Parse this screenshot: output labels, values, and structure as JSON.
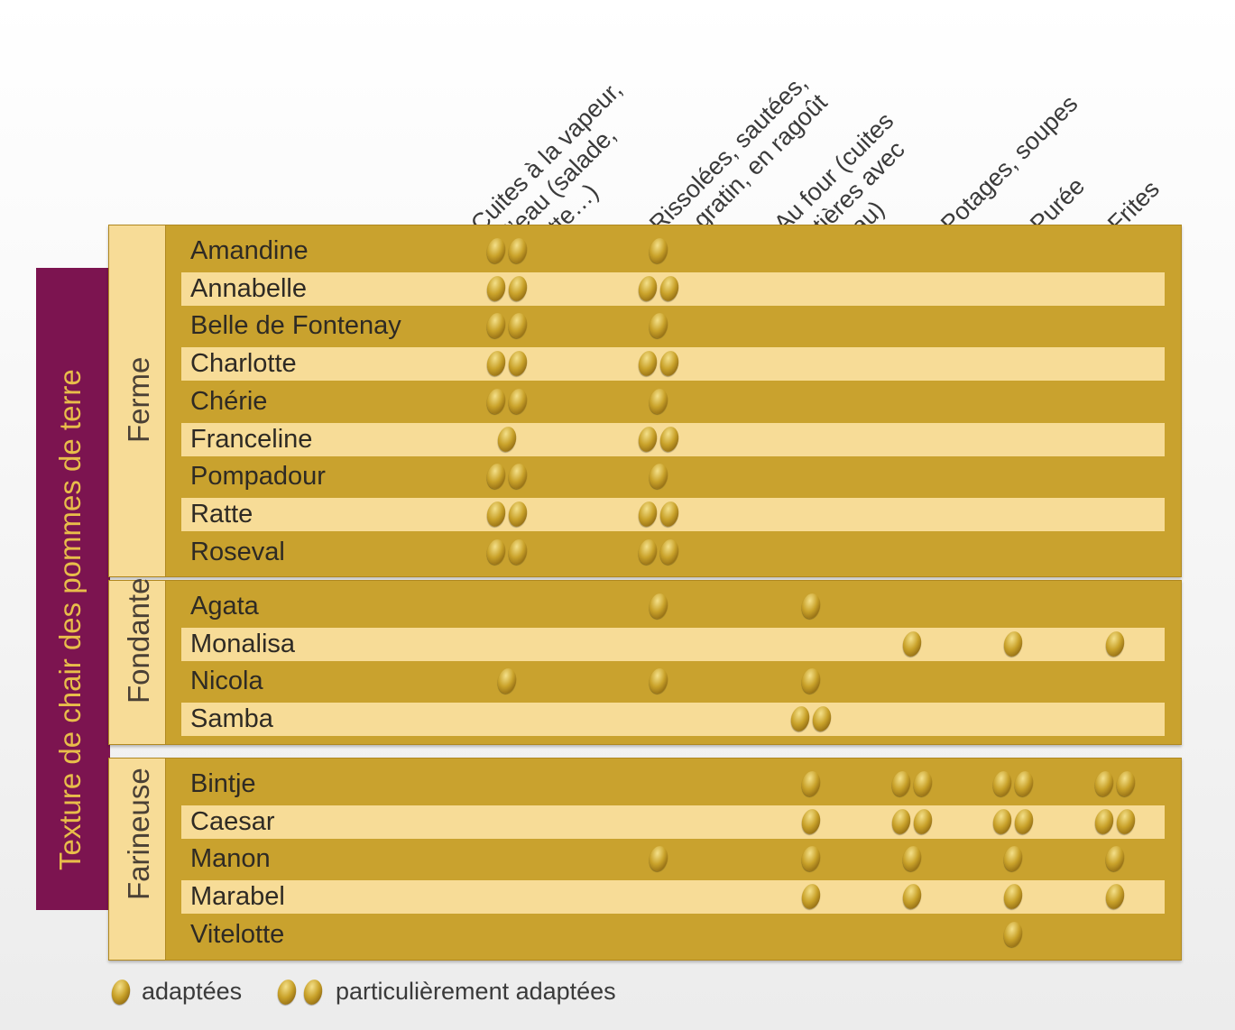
{
  "columns": [
    {
      "lines": [
        "Cuites à la vapeur,",
        "à l’eau (salade,",
        "raclette…)"
      ]
    },
    {
      "lines": [
        "Rissolées, sautées,",
        "en gratin, en ragoût"
      ]
    },
    {
      "lines": [
        "Au four (cuites",
        "entières avec",
        "la peau)"
      ]
    },
    {
      "lines": [
        "Potages, soupes"
      ]
    },
    {
      "lines": [
        "Purée"
      ]
    },
    {
      "lines": [
        "Frites"
      ]
    }
  ],
  "side_label": "Texture de chair des pommes de terre",
  "groups": [
    {
      "label": "Ferme",
      "rows": [
        {
          "name": "Amandine",
          "ratings": [
            2,
            1,
            0,
            0,
            0,
            0
          ]
        },
        {
          "name": "Annabelle",
          "ratings": [
            2,
            2,
            0,
            0,
            0,
            0
          ]
        },
        {
          "name": "Belle de Fontenay",
          "ratings": [
            2,
            1,
            0,
            0,
            0,
            0
          ]
        },
        {
          "name": "Charlotte",
          "ratings": [
            2,
            2,
            0,
            0,
            0,
            0
          ]
        },
        {
          "name": "Chérie",
          "ratings": [
            2,
            1,
            0,
            0,
            0,
            0
          ]
        },
        {
          "name": "Franceline",
          "ratings": [
            1,
            2,
            0,
            0,
            0,
            0
          ]
        },
        {
          "name": "Pompadour",
          "ratings": [
            2,
            1,
            0,
            0,
            0,
            0
          ]
        },
        {
          "name": "Ratte",
          "ratings": [
            2,
            2,
            0,
            0,
            0,
            0
          ]
        },
        {
          "name": "Roseval",
          "ratings": [
            2,
            2,
            0,
            0,
            0,
            0
          ]
        }
      ]
    },
    {
      "label": "Fondante",
      "rows": [
        {
          "name": "Agata",
          "ratings": [
            0,
            1,
            1,
            0,
            0,
            0
          ]
        },
        {
          "name": "Monalisa",
          "ratings": [
            0,
            0,
            0,
            1,
            1,
            1
          ]
        },
        {
          "name": "Nicola",
          "ratings": [
            1,
            1,
            1,
            0,
            0,
            0
          ]
        },
        {
          "name": "Samba",
          "ratings": [
            0,
            0,
            2,
            0,
            0,
            0
          ]
        }
      ]
    },
    {
      "label": "Farineuse",
      "rows": [
        {
          "name": "Bintje",
          "ratings": [
            0,
            0,
            1,
            2,
            2,
            2
          ]
        },
        {
          "name": "Caesar",
          "ratings": [
            0,
            0,
            1,
            2,
            2,
            2
          ]
        },
        {
          "name": "Manon",
          "ratings": [
            0,
            1,
            1,
            1,
            1,
            1
          ]
        },
        {
          "name": "Marabel",
          "ratings": [
            0,
            0,
            1,
            1,
            1,
            1
          ]
        },
        {
          "name": "Vitelotte",
          "ratings": [
            0,
            0,
            0,
            0,
            1,
            0
          ]
        }
      ]
    }
  ],
  "legend": {
    "single": "adaptées",
    "double": "particulièrement adaptées"
  },
  "icons": {
    "rating": "potato-icon"
  },
  "colors": {
    "panel_dark": "#c9a22e",
    "panel_light": "#f7dc97",
    "side_bar": "#7c1450",
    "side_text": "#e8bd4a"
  }
}
